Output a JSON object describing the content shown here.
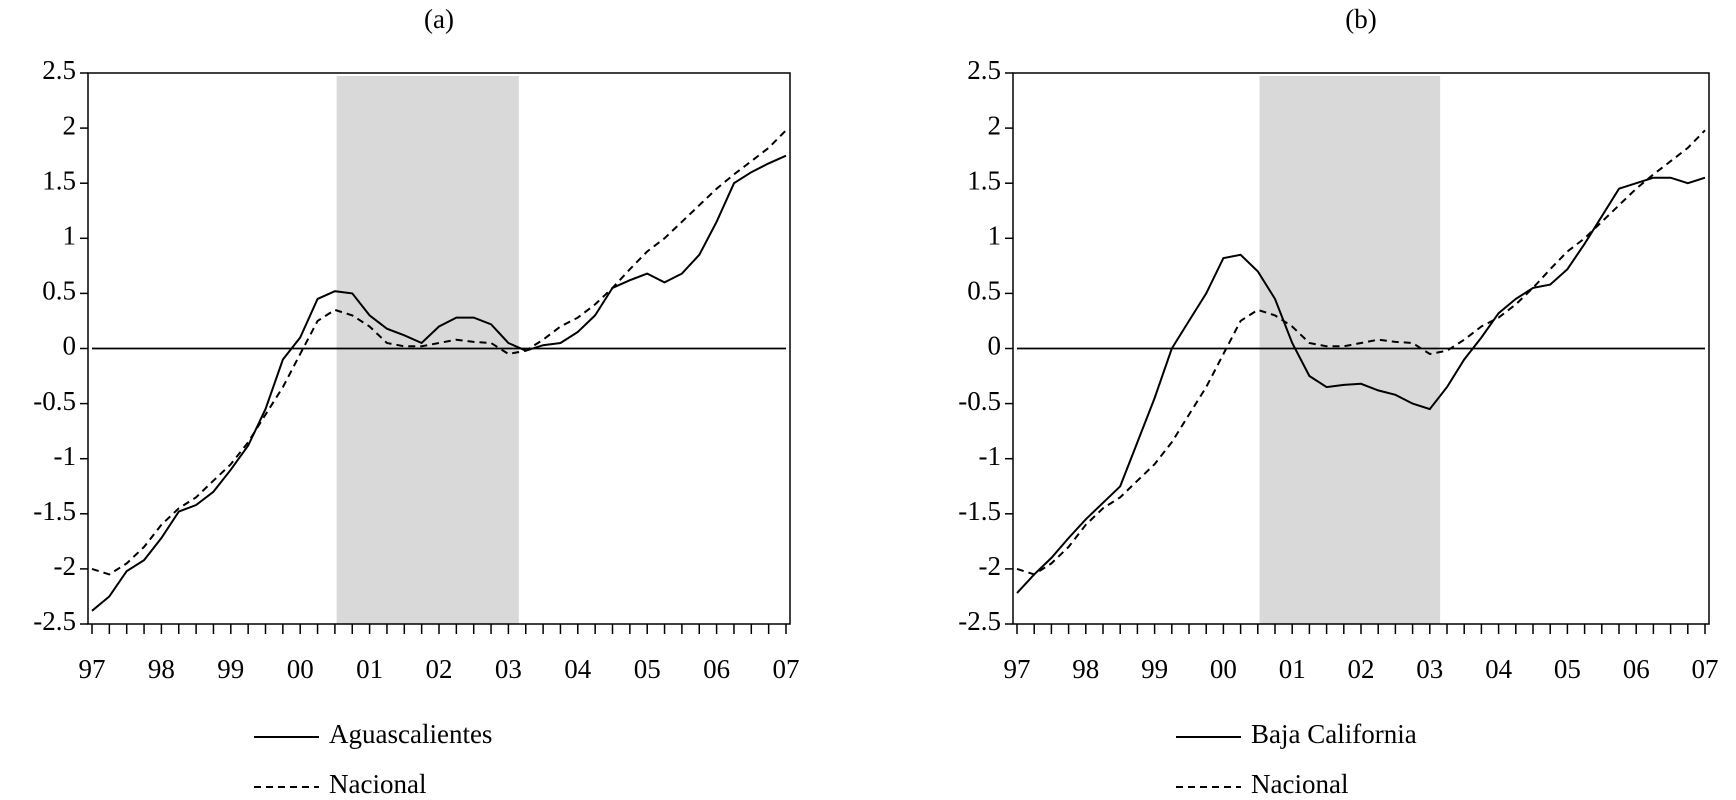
{
  "chart_data": [
    {
      "type": "line",
      "title": "(a)",
      "categories": [
        "97",
        null,
        null,
        null,
        "98",
        null,
        null,
        null,
        "99",
        null,
        null,
        null,
        "00",
        null,
        null,
        null,
        "01",
        null,
        null,
        null,
        "02",
        null,
        null,
        null,
        "03",
        null,
        null,
        null,
        "04",
        null,
        null,
        null,
        "05",
        null,
        null,
        null,
        "06",
        null,
        null,
        null,
        "07"
      ],
      "series": [
        {
          "name": "Aguascalientes",
          "color": "#000000",
          "style": "solid",
          "values": [
            -2.38,
            -2.25,
            -2.02,
            -1.92,
            -1.72,
            -1.48,
            -1.42,
            -1.3,
            -1.1,
            -0.88,
            -0.55,
            -0.1,
            0.1,
            0.45,
            0.52,
            0.5,
            0.3,
            0.18,
            0.12,
            0.05,
            0.2,
            0.28,
            0.28,
            0.22,
            0.05,
            -0.02,
            0.03,
            0.05,
            0.15,
            0.3,
            0.55,
            0.62,
            0.68,
            0.6,
            0.68,
            0.85,
            1.15,
            1.5,
            1.6,
            1.68,
            1.75
          ]
        },
        {
          "name": "Nacional",
          "color": "#000000",
          "style": "dashed",
          "values": [
            -2.0,
            -2.05,
            -1.95,
            -1.8,
            -1.6,
            -1.45,
            -1.35,
            -1.2,
            -1.05,
            -0.85,
            -0.6,
            -0.35,
            -0.05,
            0.25,
            0.35,
            0.3,
            0.2,
            0.05,
            0.02,
            0.02,
            0.05,
            0.08,
            0.06,
            0.05,
            -0.05,
            -0.02,
            0.08,
            0.2,
            0.28,
            0.4,
            0.55,
            0.72,
            0.88,
            1.0,
            1.15,
            1.3,
            1.45,
            1.58,
            1.7,
            1.82,
            1.98
          ]
        }
      ],
      "ylim": [
        -2.5,
        2.5
      ],
      "yticks": [
        2.5,
        2,
        1.5,
        1,
        0.5,
        0,
        -0.5,
        -1,
        -1.5,
        -2,
        -2.5
      ],
      "hline": 0,
      "shade": [
        14.1,
        24.6
      ],
      "shade_color": "#d9d9d9",
      "grid": false
    },
    {
      "type": "line",
      "title": "(b)",
      "categories": [
        "97",
        null,
        null,
        null,
        "98",
        null,
        null,
        null,
        "99",
        null,
        null,
        null,
        "00",
        null,
        null,
        null,
        "01",
        null,
        null,
        null,
        "02",
        null,
        null,
        null,
        "03",
        null,
        null,
        null,
        "04",
        null,
        null,
        null,
        "05",
        null,
        null,
        null,
        "06",
        null,
        null,
        null,
        "07"
      ],
      "series": [
        {
          "name": "Baja California",
          "color": "#000000",
          "style": "solid",
          "values": [
            -2.22,
            -2.05,
            -1.9,
            -1.72,
            -1.55,
            -1.4,
            -1.25,
            -0.85,
            -0.45,
            0.0,
            0.25,
            0.5,
            0.82,
            0.85,
            0.7,
            0.45,
            0.05,
            -0.25,
            -0.35,
            -0.33,
            -0.32,
            -0.38,
            -0.42,
            -0.5,
            -0.55,
            -0.35,
            -0.1,
            0.1,
            0.32,
            0.45,
            0.55,
            0.58,
            0.72,
            0.95,
            1.2,
            1.45,
            1.5,
            1.55,
            1.55,
            1.5,
            1.55
          ]
        },
        {
          "name": "Nacional",
          "color": "#000000",
          "style": "dashed",
          "values": [
            -2.0,
            -2.05,
            -1.95,
            -1.8,
            -1.6,
            -1.45,
            -1.35,
            -1.2,
            -1.05,
            -0.85,
            -0.6,
            -0.35,
            -0.05,
            0.25,
            0.35,
            0.3,
            0.2,
            0.05,
            0.02,
            0.02,
            0.05,
            0.08,
            0.06,
            0.05,
            -0.05,
            -0.02,
            0.08,
            0.2,
            0.28,
            0.4,
            0.55,
            0.72,
            0.88,
            1.0,
            1.15,
            1.3,
            1.45,
            1.58,
            1.7,
            1.82,
            1.98
          ]
        }
      ],
      "ylim": [
        -2.5,
        2.5
      ],
      "yticks": [
        2.5,
        2,
        1.5,
        1,
        0.5,
        0,
        -0.5,
        -1,
        -1.5,
        -2,
        -2.5
      ],
      "hline": 0,
      "shade": [
        14.1,
        24.6
      ],
      "shade_color": "#d9d9d9",
      "grid": false
    }
  ]
}
